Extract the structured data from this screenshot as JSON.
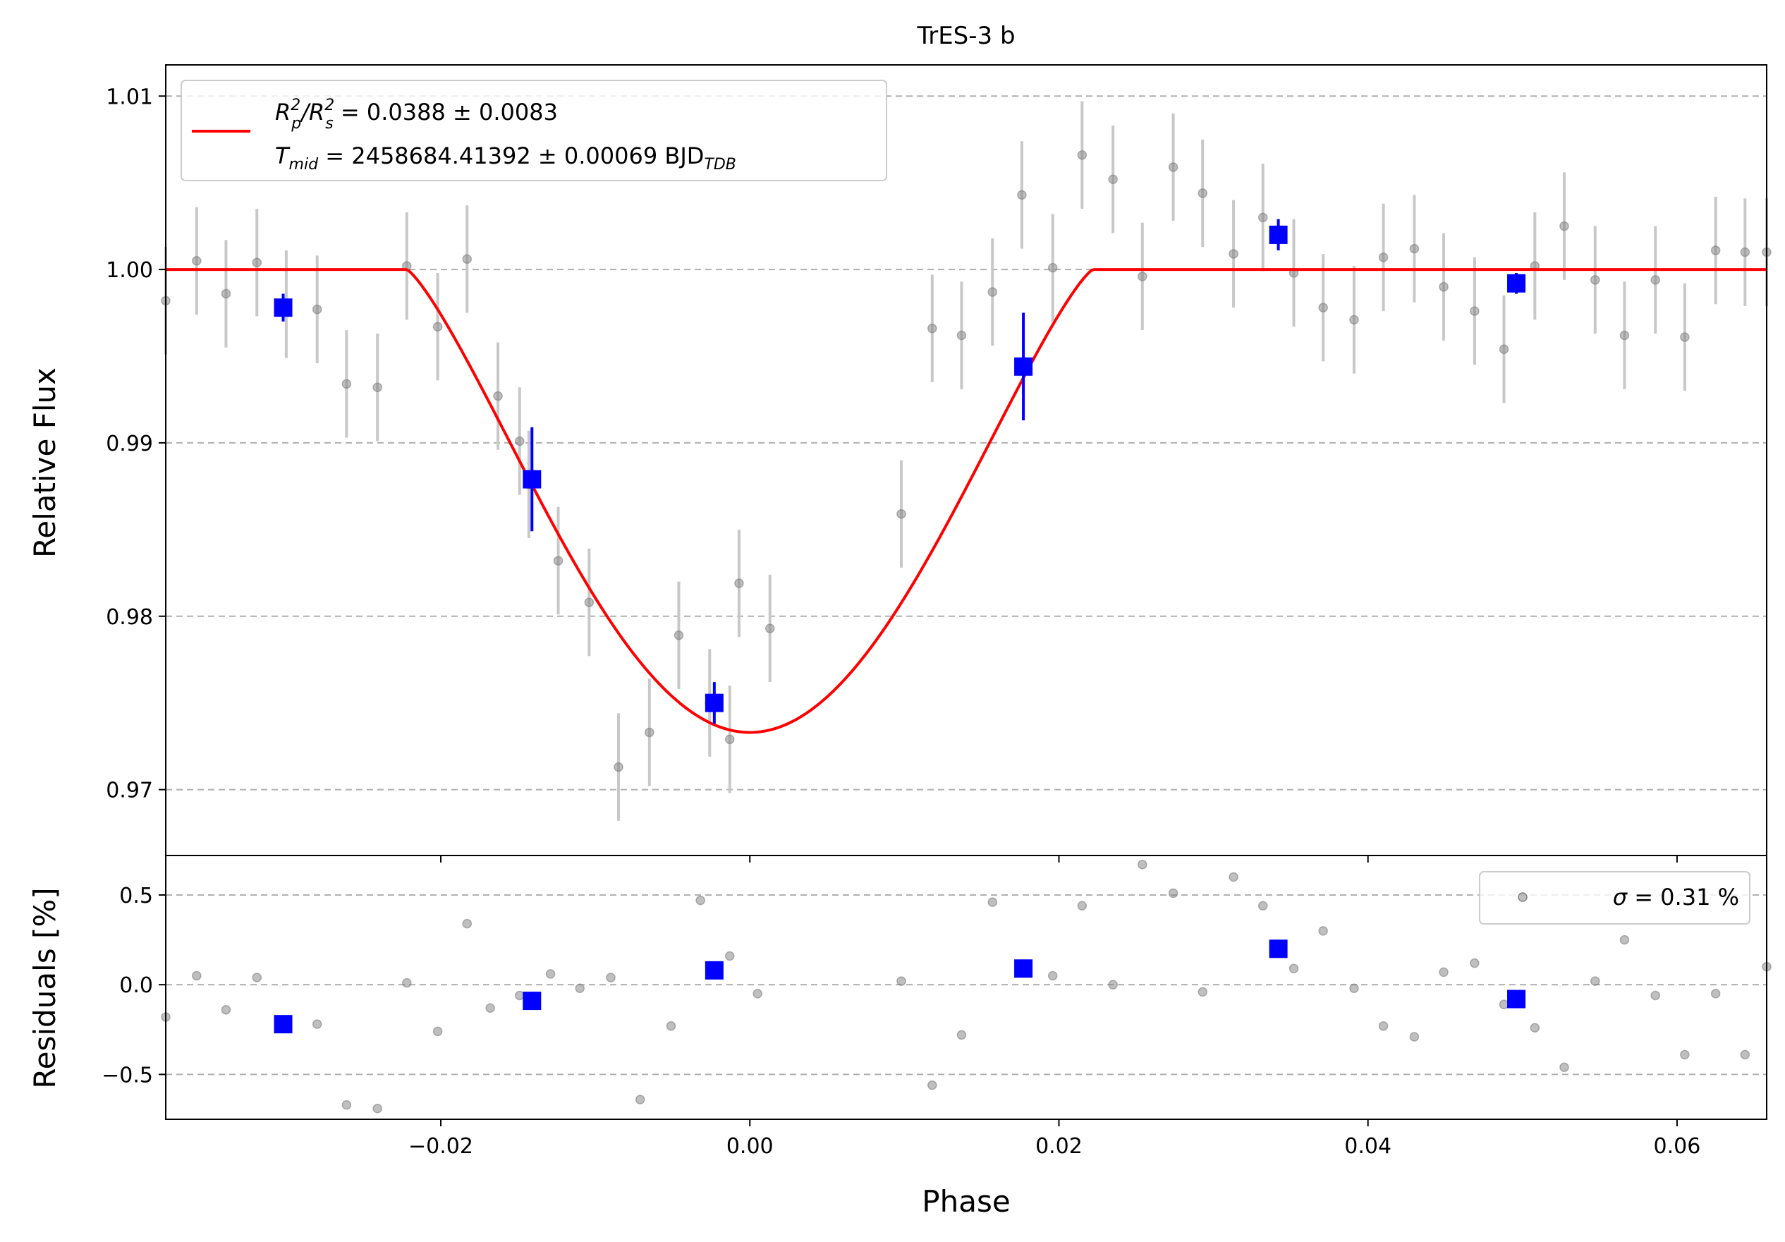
{
  "chart_data": [
    {
      "type": "scatter",
      "panel": "light-curve",
      "title": "TrES-3 b",
      "xlabel": "",
      "ylabel": "Relative Flux",
      "xlim": [
        -0.0378,
        0.0658
      ],
      "ylim": [
        0.9662,
        1.0118
      ],
      "x_ticks": [
        -0.02,
        0.0,
        0.02,
        0.04,
        0.06
      ],
      "y_ticks": [
        0.97,
        0.98,
        0.99,
        1.0,
        1.01
      ],
      "y_tick_labels": [
        "0.97",
        "0.98",
        "0.99",
        "1.00",
        "1.01"
      ],
      "grid": "horizontal dashed",
      "legend": {
        "placement": "upper-left",
        "line1": {
          "prefix": "R",
          "sub1": "p",
          "sup1": "2",
          "slash": "/R",
          "sub2": "s",
          "sup2": "2",
          "value": " = 0.0388 ± 0.0083"
        },
        "line2": {
          "prefix": "T",
          "sub": "mid",
          "value": " = 2458684.41392 ± 0.00069 BJD",
          "unit_sub": "TDB"
        }
      },
      "model": {
        "name": "transit model",
        "color": "#ff0000",
        "depth": 0.0267,
        "t1": -0.0222,
        "t4": 0.0222
      },
      "raw_points": {
        "color": "#808080",
        "errorbar_color": "#c8c8c8",
        "x": [
          -0.0378,
          -0.0358,
          -0.0339,
          -0.0319,
          -0.03,
          -0.028,
          -0.0261,
          -0.0241,
          -0.0222,
          -0.0202,
          -0.0183,
          -0.0163,
          -0.0149,
          -0.0143,
          -0.0124,
          -0.0104,
          -0.0085,
          -0.0065,
          -0.0046,
          -0.0026,
          -0.0013,
          -0.0007,
          0.0013,
          0.0098,
          0.0118,
          0.0137,
          0.0157,
          0.0176,
          0.0196,
          0.0215,
          0.0235,
          0.0254,
          0.0274,
          0.0293,
          0.0313,
          0.0332,
          0.0352,
          0.0371,
          0.0391,
          0.041,
          0.043,
          0.0449,
          0.0469,
          0.0488,
          0.0508,
          0.0527,
          0.0547,
          0.0566,
          0.0586,
          0.0605,
          0.0625,
          0.0644,
          0.0658
        ],
        "y": [
          0.9982,
          1.0005,
          0.9986,
          1.0004,
          0.998,
          0.9977,
          0.9934,
          0.9932,
          1.0002,
          0.9967,
          1.0006,
          0.9927,
          0.9901,
          0.9876,
          0.9832,
          0.9808,
          0.9713,
          0.9733,
          0.9789,
          0.975,
          0.9729,
          0.9819,
          0.9793,
          0.9859,
          0.9966,
          0.9962,
          0.9987,
          1.0043,
          1.0001,
          1.0066,
          1.0052,
          0.9996,
          1.0059,
          1.0044,
          1.0009,
          1.003,
          0.9998,
          0.9978,
          0.9971,
          1.0007,
          1.0012,
          0.999,
          0.9976,
          0.9954,
          1.0002,
          1.0025,
          0.9994,
          0.9962,
          0.9994,
          0.9961,
          1.0011,
          1.001,
          1.001
        ],
        "err": [
          0.0031,
          0.0031,
          0.0031,
          0.0031,
          0.0031,
          0.0031,
          0.0031,
          0.0031,
          0.0031,
          0.0031,
          0.0031,
          0.0031,
          0.0031,
          0.0031,
          0.0031,
          0.0031,
          0.0031,
          0.0031,
          0.0031,
          0.0031,
          0.0031,
          0.0031,
          0.0031,
          0.0031,
          0.0031,
          0.0031,
          0.0031,
          0.0031,
          0.0031,
          0.0031,
          0.0031,
          0.0031,
          0.0031,
          0.0031,
          0.0031,
          0.0031,
          0.0031,
          0.0031,
          0.0031,
          0.0031,
          0.0031,
          0.0031,
          0.0031,
          0.0031,
          0.0031,
          0.0031,
          0.0031,
          0.0031,
          0.0031,
          0.0031,
          0.0031,
          0.0031,
          0.0031
        ]
      },
      "binned_points": {
        "color": "#0000ff",
        "x": [
          -0.0302,
          -0.0141,
          -0.0023,
          0.0177,
          0.0342,
          0.0496
        ],
        "y": [
          0.9978,
          0.9879,
          0.975,
          0.9944,
          1.002,
          0.9992
        ],
        "err": [
          0.0008,
          0.003,
          0.0012,
          0.0031,
          0.0009,
          0.0006
        ]
      }
    },
    {
      "type": "scatter",
      "panel": "residuals",
      "xlabel": "Phase",
      "ylabel": "Residuals [%]",
      "xlim": [
        -0.0378,
        0.0658
      ],
      "ylim": [
        -0.75,
        0.72
      ],
      "x_ticks": [
        -0.02,
        0.0,
        0.02,
        0.04,
        0.06
      ],
      "x_tick_labels": [
        "−0.02",
        "0.00",
        "0.02",
        "0.04",
        "0.06"
      ],
      "y_ticks": [
        -0.5,
        0.0,
        0.5
      ],
      "y_tick_labels": [
        "−0.5",
        "0.0",
        "0.5"
      ],
      "grid": "horizontal dashed",
      "legend": {
        "placement": "upper-right",
        "symbol": "σ",
        "value": " = 0.31 %"
      },
      "raw_points": {
        "color": "#808080",
        "x": [
          -0.0378,
          -0.0358,
          -0.0339,
          -0.0319,
          -0.028,
          -0.0261,
          -0.0241,
          -0.0222,
          -0.0202,
          -0.0183,
          -0.0168,
          -0.0149,
          -0.0129,
          -0.011,
          -0.009,
          -0.0071,
          -0.0051,
          -0.0032,
          -0.0013,
          0.0005,
          0.0098,
          0.0118,
          0.0137,
          0.0157,
          0.0196,
          0.0215,
          0.0235,
          0.0254,
          0.0274,
          0.0293,
          0.0313,
          0.0332,
          0.0352,
          0.0371,
          0.0391,
          0.041,
          0.043,
          0.0449,
          0.0469,
          0.0488,
          0.0508,
          0.0527,
          0.0547,
          0.0566,
          0.0586,
          0.0605,
          0.0625,
          0.0644,
          0.0658
        ],
        "y": [
          -0.18,
          0.05,
          -0.14,
          0.04,
          -0.22,
          -0.67,
          -0.69,
          0.01,
          -0.26,
          0.34,
          -0.13,
          -0.06,
          0.06,
          -0.02,
          0.04,
          -0.64,
          -0.23,
          0.47,
          0.16,
          -0.05,
          0.02,
          -0.56,
          -0.28,
          0.46,
          0.05,
          0.44,
          0.0,
          0.67,
          0.51,
          -0.04,
          0.6,
          0.44,
          0.09,
          0.3,
          -0.02,
          -0.23,
          -0.29,
          0.07,
          0.12,
          -0.11,
          -0.24,
          -0.46,
          0.02,
          0.25,
          -0.06,
          -0.39,
          -0.05,
          -0.39,
          0.1
        ]
      },
      "binned_points": {
        "color": "#0000ff",
        "x": [
          -0.0302,
          -0.0141,
          -0.0023,
          0.0177,
          0.0342,
          0.0496
        ],
        "y": [
          -0.22,
          -0.09,
          0.08,
          0.09,
          0.2,
          -0.08
        ]
      }
    }
  ]
}
